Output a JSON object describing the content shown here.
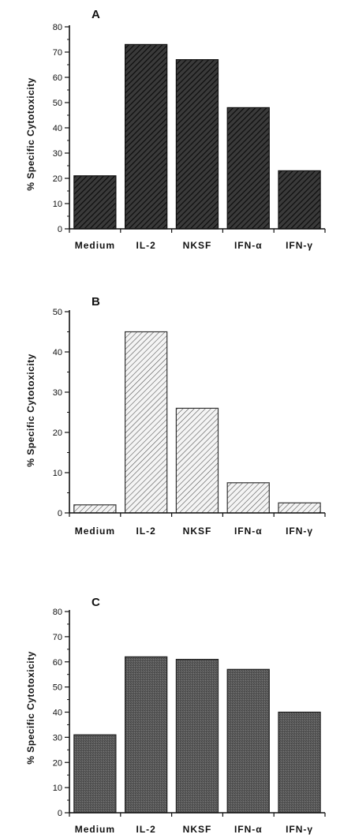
{
  "chart_data": [
    {
      "type": "bar",
      "panel_label": "A",
      "ylabel": "% Specific Cytotoxicity",
      "xlabel": "",
      "categories": [
        "Medium",
        "IL-2",
        "NKSF",
        "IFN-α",
        "IFN-γ"
      ],
      "values": [
        21,
        73,
        67,
        48,
        23
      ],
      "ylim": [
        0,
        80
      ],
      "yticks": [
        0,
        10,
        20,
        30,
        40,
        50,
        60,
        70,
        80
      ],
      "fill": "dense-diagonal-hatch",
      "bar_color": "#2a2a2a",
      "grid": false
    },
    {
      "type": "bar",
      "panel_label": "B",
      "ylabel": "% Specific Cytotoxicity",
      "xlabel": "",
      "categories": [
        "Medium",
        "IL-2",
        "NKSF",
        "IFN-α",
        "IFN-γ"
      ],
      "values": [
        2,
        45,
        26,
        7.5,
        2.5
      ],
      "ylim": [
        0,
        50
      ],
      "yticks": [
        0,
        10,
        20,
        30,
        40,
        50
      ],
      "fill": "light-diagonal-hatch",
      "bar_color": "#555555",
      "grid": false
    },
    {
      "type": "bar",
      "panel_label": "C",
      "ylabel": "% Specific Cytotoxicity",
      "xlabel": "",
      "categories": [
        "Medium",
        "IL-2",
        "NKSF",
        "IFN-α",
        "IFN-γ"
      ],
      "values": [
        31,
        62,
        61,
        57,
        40
      ],
      "ylim": [
        0,
        80
      ],
      "yticks": [
        0,
        10,
        20,
        30,
        40,
        50,
        60,
        70,
        80
      ],
      "fill": "solid-stipple",
      "bar_color": "#5a5a5a",
      "grid": false
    }
  ]
}
